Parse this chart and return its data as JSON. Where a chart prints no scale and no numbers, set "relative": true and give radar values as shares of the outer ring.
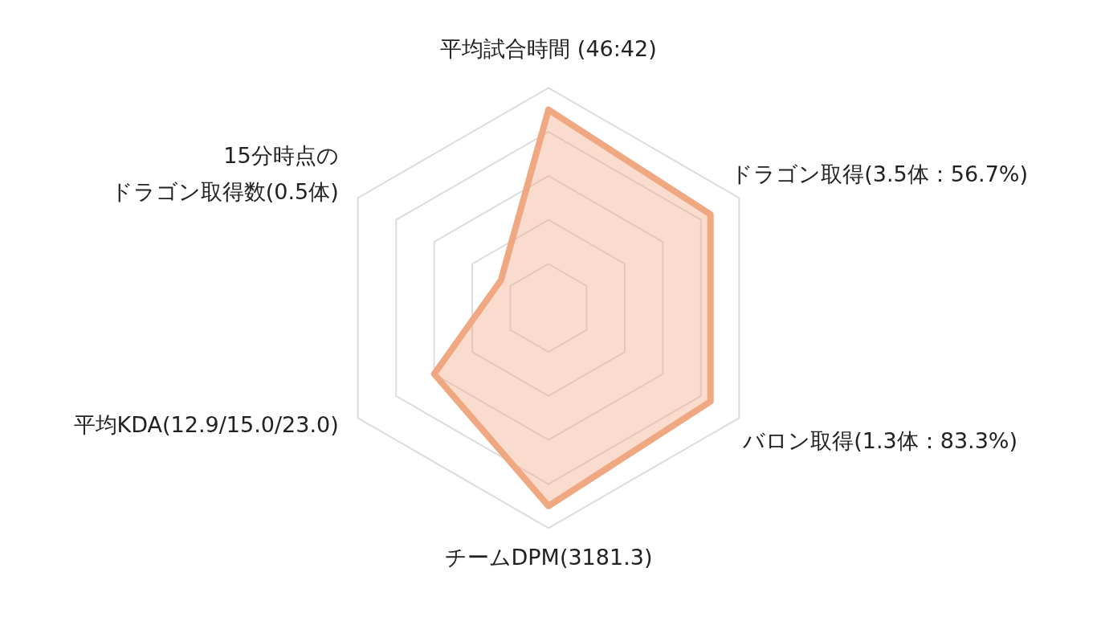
{
  "chart_data": {
    "type": "radar",
    "relative": true,
    "grid": true,
    "categories": [
      "平均試合時間 (46:42)",
      "ドラゴン取得(3.5体：56.7%)",
      "バロン取得(1.3体：83.3%)",
      "チームDPM(3181.3)",
      "平均KDA(12.9/15.0/23.0)",
      "15分時点のドラゴン取得数(0.5体)"
    ],
    "series": [
      {
        "color": "#f0a882",
        "values": [
          0.9,
          0.85,
          0.85,
          0.9,
          0.6,
          0.25
        ]
      }
    ]
  }
}
